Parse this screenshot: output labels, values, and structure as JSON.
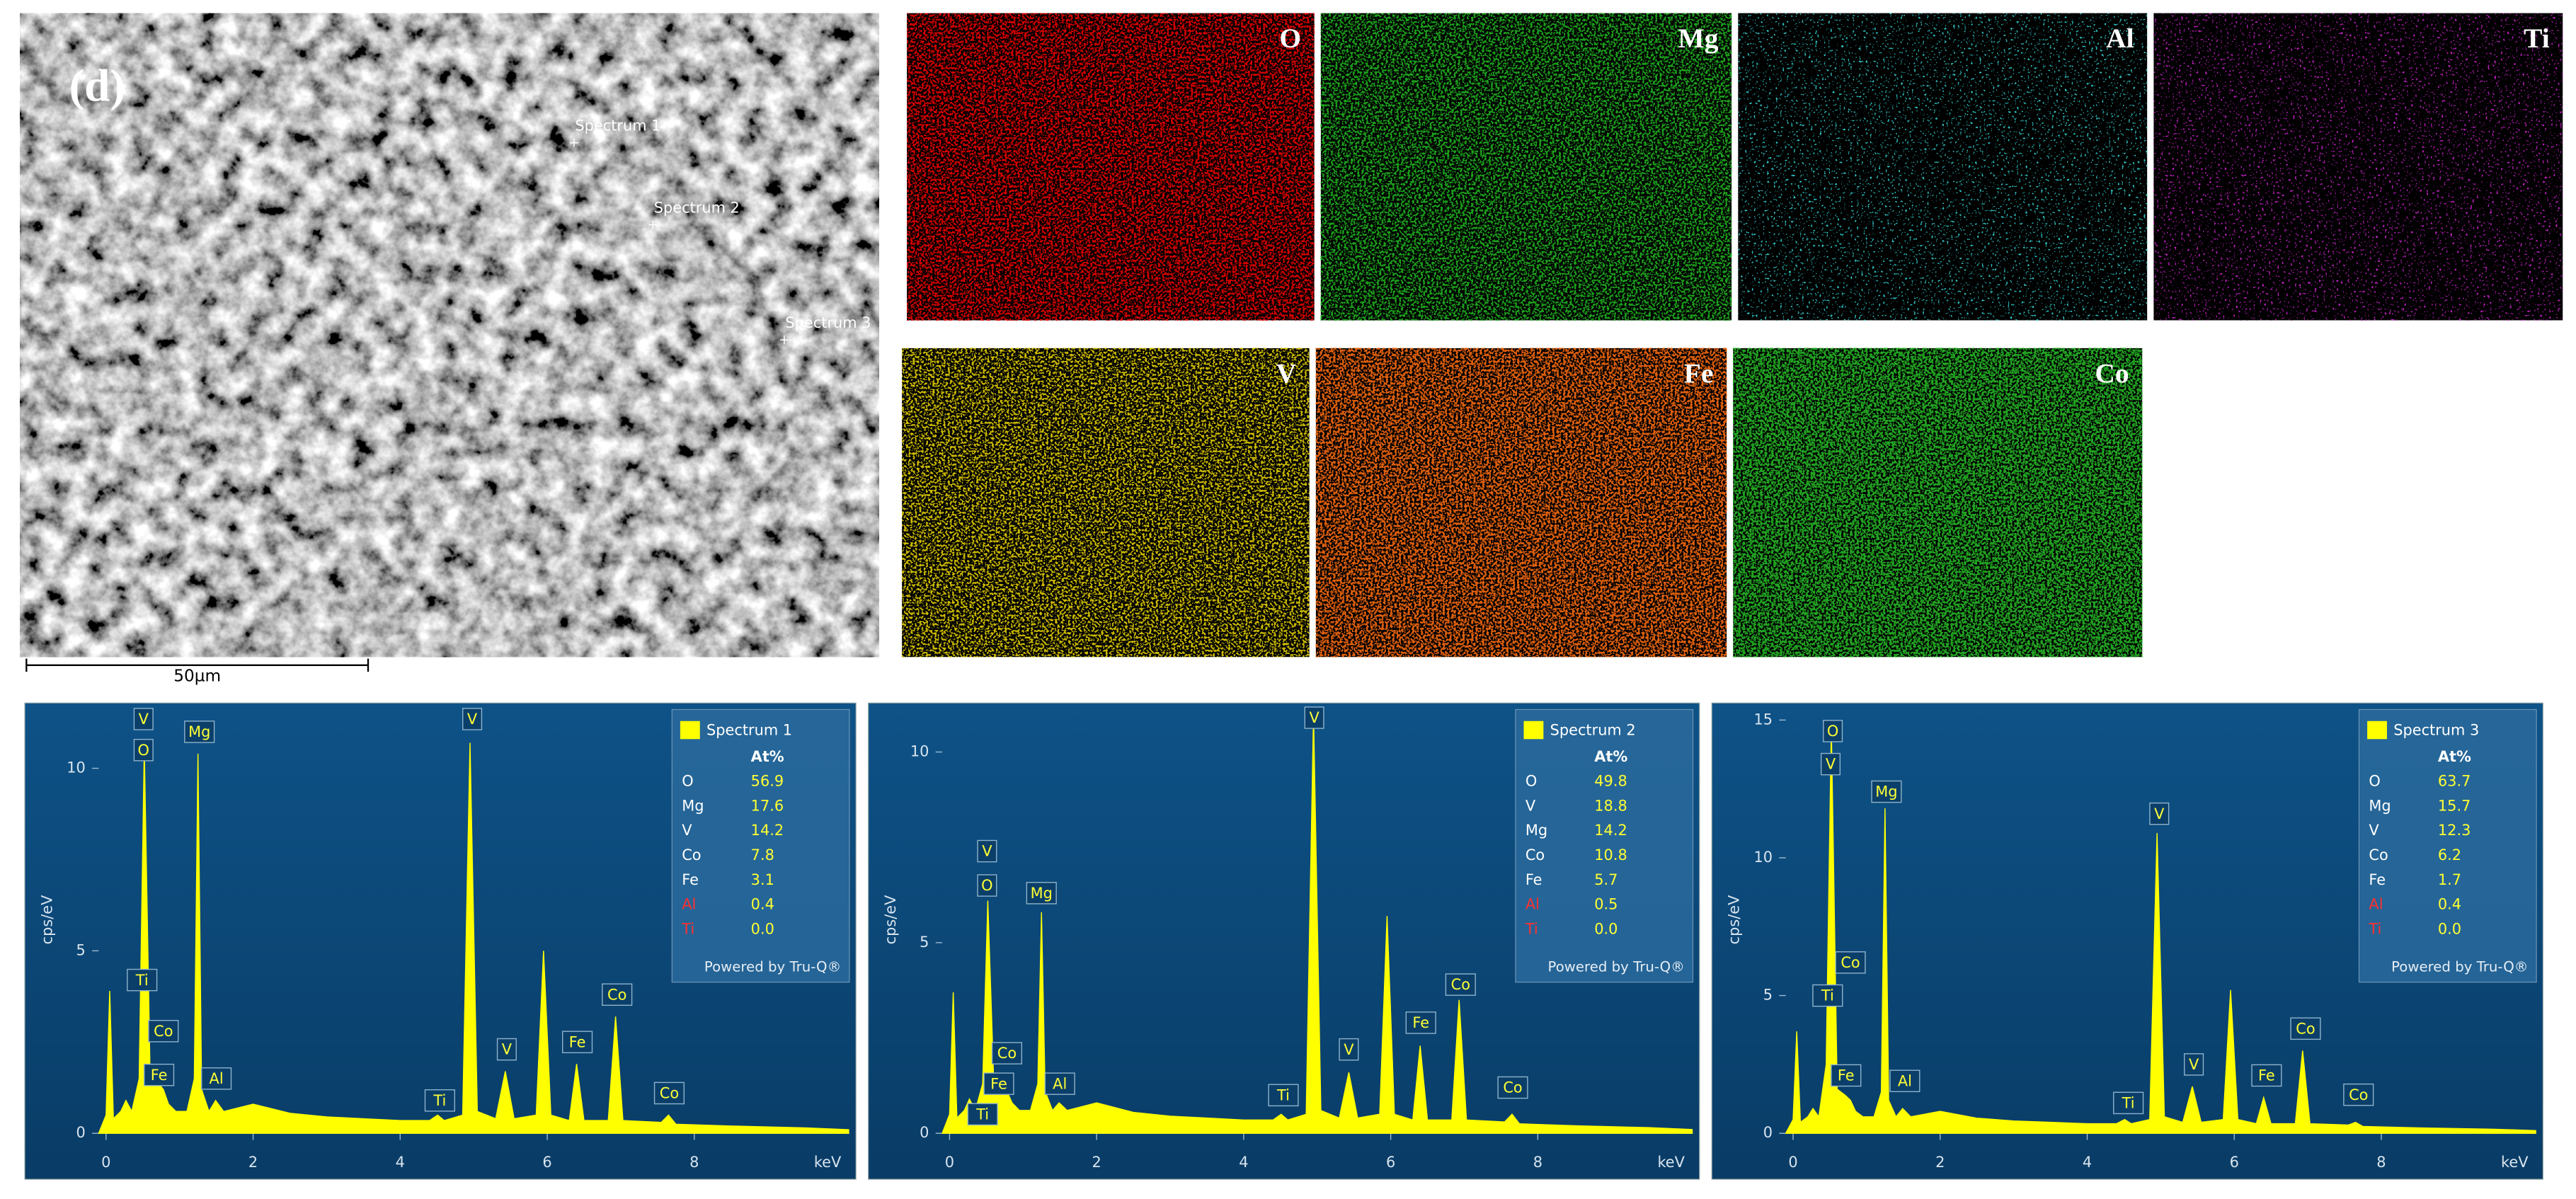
{
  "panel_label": "(d)",
  "sem": {
    "labels": [
      "Spectrum 1",
      "Spectrum 2",
      "Spectrum 3"
    ],
    "scale_bar": "50µm"
  },
  "maps": [
    {
      "label": "O",
      "color": "#d40000"
    },
    {
      "label": "Mg",
      "color": "#1fa01f"
    },
    {
      "label": "Al",
      "color": "#30c8c8"
    },
    {
      "label": "Ti",
      "color": "#c020c0"
    },
    {
      "label": "V",
      "color": "#cdbb00"
    },
    {
      "label": "Fe",
      "color": "#e0600c"
    },
    {
      "label": "Co",
      "color": "#22a422"
    }
  ],
  "chart_data": [
    {
      "type": "line",
      "y_label": "cps/eV",
      "x_label": "keV",
      "xlim": [
        -0.1,
        10.11
      ],
      "xticks": [
        0,
        2,
        4,
        6,
        8
      ],
      "ylim": [
        0,
        11.7
      ],
      "yticks": [
        0,
        5,
        10
      ],
      "x": [
        -0.1,
        0.0,
        0.05,
        0.1,
        0.2,
        0.27,
        0.35,
        0.45,
        0.52,
        0.6,
        0.7,
        0.78,
        0.85,
        0.95,
        1.1,
        1.2,
        1.25,
        1.3,
        1.4,
        1.49,
        1.6,
        2.0,
        2.5,
        3.0,
        3.5,
        4.0,
        4.4,
        4.51,
        4.6,
        4.85,
        4.95,
        5.05,
        5.3,
        5.43,
        5.55,
        5.85,
        5.95,
        6.05,
        6.3,
        6.4,
        6.5,
        6.83,
        6.93,
        7.03,
        7.55,
        7.65,
        7.75,
        8.5,
        9.5,
        10.1
      ],
      "series": [
        {
          "name": "Spectrum 1",
          "color": "#ffff00",
          "values": [
            0,
            0.5,
            3.9,
            0.4,
            0.6,
            0.9,
            0.6,
            1.5,
            10.6,
            1.5,
            1.4,
            1.2,
            0.8,
            0.6,
            0.6,
            1.5,
            10.4,
            1.2,
            0.6,
            0.9,
            0.6,
            0.8,
            0.55,
            0.45,
            0.4,
            0.35,
            0.35,
            0.5,
            0.35,
            0.5,
            10.7,
            0.6,
            0.4,
            1.7,
            0.4,
            0.5,
            5.0,
            0.5,
            0.35,
            1.9,
            0.35,
            0.35,
            3.2,
            0.35,
            0.3,
            0.5,
            0.25,
            0.2,
            0.15,
            0.1
          ]
        }
      ],
      "annotations": [
        {
          "text": "V",
          "x": 0.51,
          "y": 11.35
        },
        {
          "text": "O",
          "x": 0.51,
          "y": 10.5
        },
        {
          "text": "Mg",
          "x": 1.27,
          "y": 11.0
        },
        {
          "text": "Ti",
          "x": 0.49,
          "y": 4.2
        },
        {
          "text": "Co",
          "x": 0.78,
          "y": 2.8
        },
        {
          "text": "Fe",
          "x": 0.72,
          "y": 1.6
        },
        {
          "text": "Al",
          "x": 1.5,
          "y": 1.5
        },
        {
          "text": "Ti",
          "x": 4.54,
          "y": 0.9
        },
        {
          "text": "V",
          "x": 4.98,
          "y": 11.35
        },
        {
          "text": "V",
          "x": 5.45,
          "y": 2.3
        },
        {
          "text": "Fe",
          "x": 6.41,
          "y": 2.5
        },
        {
          "text": "Co",
          "x": 6.95,
          "y": 3.8
        },
        {
          "text": "Co",
          "x": 7.66,
          "y": 1.1
        }
      ],
      "table": {
        "header": "At%",
        "rows": [
          {
            "element": "O",
            "value": "56.9"
          },
          {
            "element": "Mg",
            "value": "17.6"
          },
          {
            "element": "V",
            "value": "14.2"
          },
          {
            "element": "Co",
            "value": "7.8"
          },
          {
            "element": "Fe",
            "value": "3.1"
          },
          {
            "element": "Al",
            "value": "0.4",
            "color": "#ff3030"
          },
          {
            "element": "Ti",
            "value": "0.0",
            "color": "#ff3030"
          }
        ]
      },
      "footer": "Powered by Tru-Q®"
    },
    {
      "type": "line",
      "y_label": "cps/eV",
      "x_label": "keV",
      "xlim": [
        -0.1,
        10.11
      ],
      "xticks": [
        0,
        2,
        4,
        6,
        8
      ],
      "ylim": [
        0,
        11.2
      ],
      "yticks": [
        0,
        5,
        10
      ],
      "x": [
        -0.1,
        0.0,
        0.05,
        0.1,
        0.2,
        0.27,
        0.35,
        0.45,
        0.52,
        0.6,
        0.7,
        0.78,
        0.85,
        0.95,
        1.1,
        1.2,
        1.25,
        1.3,
        1.4,
        1.49,
        1.6,
        2.0,
        2.5,
        3.0,
        3.5,
        4.0,
        4.4,
        4.51,
        4.6,
        4.85,
        4.95,
        5.05,
        5.3,
        5.43,
        5.55,
        5.85,
        5.95,
        6.05,
        6.3,
        6.4,
        6.5,
        6.83,
        6.93,
        7.03,
        7.55,
        7.65,
        7.75,
        8.5,
        9.5,
        10.1
      ],
      "series": [
        {
          "name": "Spectrum 2",
          "color": "#ffff00",
          "values": [
            0,
            0.5,
            3.7,
            0.4,
            0.6,
            0.9,
            0.6,
            1.3,
            6.1,
            1.4,
            1.3,
            1.1,
            0.8,
            0.6,
            0.6,
            1.3,
            5.8,
            1.1,
            0.6,
            0.8,
            0.6,
            0.8,
            0.55,
            0.45,
            0.4,
            0.35,
            0.35,
            0.5,
            0.35,
            0.5,
            11.0,
            0.6,
            0.4,
            1.6,
            0.4,
            0.5,
            5.7,
            0.5,
            0.35,
            2.3,
            0.35,
            0.35,
            3.5,
            0.35,
            0.3,
            0.5,
            0.25,
            0.2,
            0.15,
            0.1
          ]
        }
      ],
      "annotations": [
        {
          "text": "V",
          "x": 0.51,
          "y": 7.4
        },
        {
          "text": "O",
          "x": 0.51,
          "y": 6.5
        },
        {
          "text": "Mg",
          "x": 1.25,
          "y": 6.3
        },
        {
          "text": "Co",
          "x": 0.78,
          "y": 2.1
        },
        {
          "text": "Fe",
          "x": 0.67,
          "y": 1.3
        },
        {
          "text": "Ti",
          "x": 0.45,
          "y": 0.5
        },
        {
          "text": "Al",
          "x": 1.5,
          "y": 1.3
        },
        {
          "text": "Ti",
          "x": 4.54,
          "y": 1.0
        },
        {
          "text": "V",
          "x": 4.96,
          "y": 10.9
        },
        {
          "text": "V",
          "x": 5.43,
          "y": 2.2
        },
        {
          "text": "Fe",
          "x": 6.41,
          "y": 2.9
        },
        {
          "text": "Co",
          "x": 6.95,
          "y": 3.9
        },
        {
          "text": "Co",
          "x": 7.66,
          "y": 1.2
        }
      ],
      "table": {
        "header": "At%",
        "rows": [
          {
            "element": "O",
            "value": "49.8"
          },
          {
            "element": "V",
            "value": "18.8"
          },
          {
            "element": "Mg",
            "value": "14.2"
          },
          {
            "element": "Co",
            "value": "10.8"
          },
          {
            "element": "Fe",
            "value": "5.7"
          },
          {
            "element": "Al",
            "value": "0.5",
            "color": "#ff3030"
          },
          {
            "element": "Ti",
            "value": "0.0",
            "color": "#ff3030"
          }
        ]
      },
      "footer": "Powered by Tru-Q®"
    },
    {
      "type": "line",
      "y_label": "cps/eV",
      "x_label": "keV",
      "xlim": [
        -0.1,
        10.11
      ],
      "xticks": [
        0,
        2,
        4,
        6,
        8
      ],
      "ylim": [
        0,
        15.5
      ],
      "yticks": [
        0,
        5,
        10,
        15
      ],
      "x": [
        -0.1,
        0.0,
        0.05,
        0.1,
        0.2,
        0.27,
        0.35,
        0.45,
        0.52,
        0.6,
        0.7,
        0.78,
        0.85,
        0.95,
        1.1,
        1.2,
        1.25,
        1.3,
        1.4,
        1.49,
        1.6,
        2.0,
        2.5,
        3.0,
        3.5,
        4.0,
        4.4,
        4.51,
        4.6,
        4.85,
        4.95,
        5.05,
        5.3,
        5.43,
        5.55,
        5.85,
        5.95,
        6.05,
        6.3,
        6.4,
        6.5,
        6.83,
        6.93,
        7.03,
        7.55,
        7.65,
        7.75,
        8.5,
        9.5,
        10.1
      ],
      "series": [
        {
          "name": "Spectrum 3",
          "color": "#ffff00",
          "values": [
            0,
            0.5,
            3.7,
            0.4,
            0.6,
            0.9,
            0.6,
            2.5,
            14.8,
            1.6,
            1.4,
            1.2,
            0.8,
            0.6,
            0.6,
            1.5,
            11.8,
            1.2,
            0.6,
            0.9,
            0.6,
            0.8,
            0.55,
            0.45,
            0.4,
            0.35,
            0.35,
            0.5,
            0.35,
            0.5,
            10.9,
            0.6,
            0.4,
            1.7,
            0.4,
            0.5,
            5.2,
            0.5,
            0.35,
            1.3,
            0.35,
            0.35,
            3.0,
            0.35,
            0.3,
            0.4,
            0.25,
            0.2,
            0.15,
            0.1
          ]
        }
      ],
      "annotations": [
        {
          "text": "O",
          "x": 0.54,
          "y": 14.6
        },
        {
          "text": "V",
          "x": 0.51,
          "y": 13.4
        },
        {
          "text": "Mg",
          "x": 1.27,
          "y": 12.4
        },
        {
          "text": "Co",
          "x": 0.78,
          "y": 6.2
        },
        {
          "text": "Ti",
          "x": 0.47,
          "y": 5.0
        },
        {
          "text": "Fe",
          "x": 0.72,
          "y": 2.1
        },
        {
          "text": "Al",
          "x": 1.52,
          "y": 1.9
        },
        {
          "text": "Ti",
          "x": 4.56,
          "y": 1.1
        },
        {
          "text": "V",
          "x": 4.98,
          "y": 11.6
        },
        {
          "text": "V",
          "x": 5.45,
          "y": 2.5
        },
        {
          "text": "Fe",
          "x": 6.44,
          "y": 2.1
        },
        {
          "text": "Co",
          "x": 6.97,
          "y": 3.8
        },
        {
          "text": "Co",
          "x": 7.69,
          "y": 1.4
        }
      ],
      "table": {
        "header": "At%",
        "rows": [
          {
            "element": "O",
            "value": "63.7"
          },
          {
            "element": "Mg",
            "value": "15.7"
          },
          {
            "element": "V",
            "value": "12.3"
          },
          {
            "element": "Co",
            "value": "6.2"
          },
          {
            "element": "Fe",
            "value": "1.7"
          },
          {
            "element": "Al",
            "value": "0.4",
            "color": "#ff3030"
          },
          {
            "element": "Ti",
            "value": "0.0",
            "color": "#ff3030"
          }
        ]
      },
      "footer": "Powered by Tru-Q®"
    }
  ]
}
